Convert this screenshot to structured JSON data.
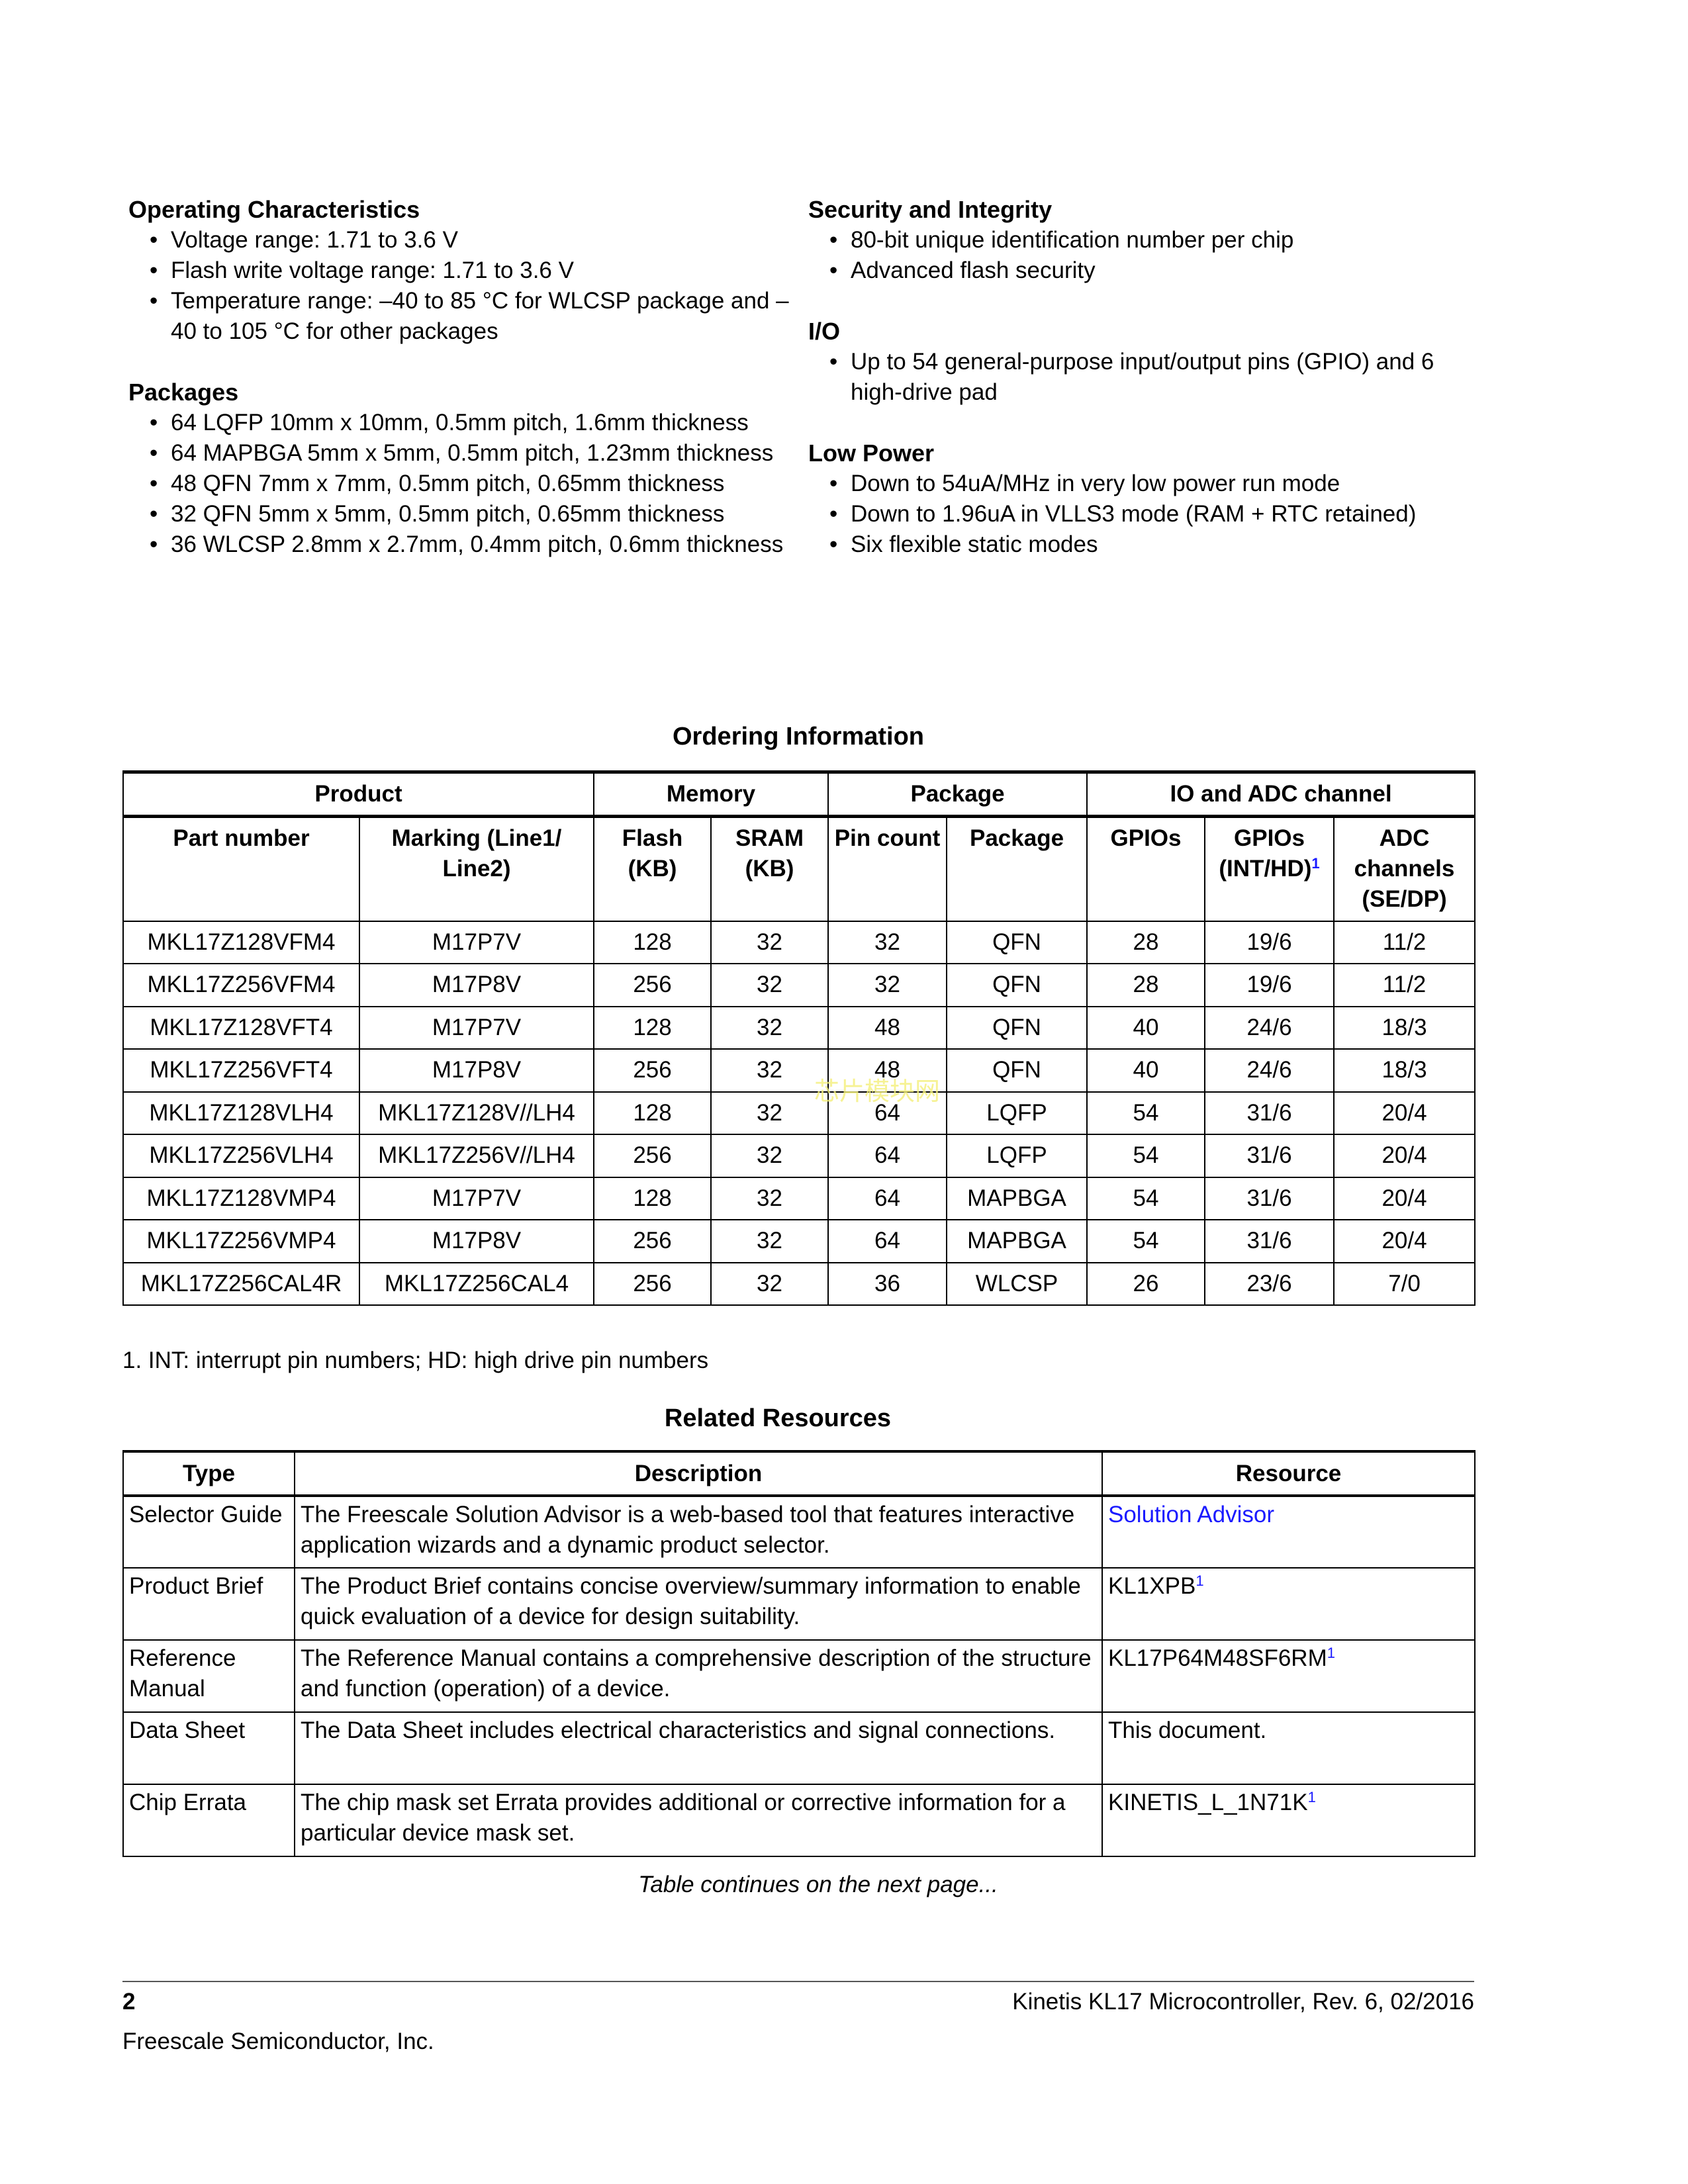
{
  "left": [
    {
      "heading": "Operating Characteristics",
      "items": [
        "Voltage range: 1.71 to 3.6 V",
        "Flash write voltage range: 1.71 to 3.6 V",
        "Temperature range: –40 to 85 °C for WLCSP package and –40 to 105 °C for other packages"
      ]
    },
    {
      "heading": "Packages",
      "items": [
        "64 LQFP 10mm x 10mm, 0.5mm pitch, 1.6mm thickness",
        "64 MAPBGA 5mm x 5mm, 0.5mm pitch, 1.23mm thickness",
        "48 QFN 7mm x 7mm, 0.5mm pitch, 0.65mm thickness",
        "32 QFN 5mm x 5mm, 0.5mm pitch, 0.65mm thickness",
        "36 WLCSP 2.8mm x 2.7mm, 0.4mm pitch, 0.6mm thickness"
      ]
    }
  ],
  "right": [
    {
      "heading": "Security and Integrity",
      "items": [
        "80-bit unique identification number per chip",
        "Advanced flash security"
      ]
    },
    {
      "heading": "I/O",
      "items": [
        "Up to 54 general-purpose input/output pins (GPIO) and 6 high-drive pad"
      ]
    },
    {
      "heading": "Low Power",
      "items": [
        "Down to 54uA/MHz in very low power run mode",
        "Down to 1.96uA in VLLS3 mode (RAM + RTC retained)",
        "Six flexible static modes"
      ]
    }
  ],
  "ordering": {
    "title": "Ordering Information",
    "groups": [
      "Product",
      "Memory",
      "Package",
      "IO and ADC channel"
    ],
    "headers": [
      "Part number",
      "Marking (Line1/ Line2)",
      "Flash (KB)",
      "SRAM (KB)",
      "Pin count",
      "Package",
      "GPIOs",
      "GPIOs (INT/HD)",
      "ADC channels (SE/DP)"
    ],
    "header_footnote": "1",
    "rows": [
      [
        "MKL17Z128VFM4",
        "M17P7V",
        "128",
        "32",
        "32",
        "QFN",
        "28",
        "19/6",
        "11/2"
      ],
      [
        "MKL17Z256VFM4",
        "M17P8V",
        "256",
        "32",
        "32",
        "QFN",
        "28",
        "19/6",
        "11/2"
      ],
      [
        "MKL17Z128VFT4",
        "M17P7V",
        "128",
        "32",
        "48",
        "QFN",
        "40",
        "24/6",
        "18/3"
      ],
      [
        "MKL17Z256VFT4",
        "M17P8V",
        "256",
        "32",
        "48",
        "QFN",
        "40",
        "24/6",
        "18/3"
      ],
      [
        "MKL17Z128VLH4",
        "MKL17Z128V//LH4",
        "128",
        "32",
        "64",
        "LQFP",
        "54",
        "31/6",
        "20/4"
      ],
      [
        "MKL17Z256VLH4",
        "MKL17Z256V//LH4",
        "256",
        "32",
        "64",
        "LQFP",
        "54",
        "31/6",
        "20/4"
      ],
      [
        "MKL17Z128VMP4",
        "M17P7V",
        "128",
        "32",
        "64",
        "MAPBGA",
        "54",
        "31/6",
        "20/4"
      ],
      [
        "MKL17Z256VMP4",
        "M17P8V",
        "256",
        "32",
        "64",
        "MAPBGA",
        "54",
        "31/6",
        "20/4"
      ],
      [
        "MKL17Z256CAL4R",
        "MKL17Z256CAL4",
        "256",
        "32",
        "36",
        "WLCSP",
        "26",
        "23/6",
        "7/0"
      ]
    ],
    "footnote": "1.   INT: interrupt pin numbers; HD: high drive pin numbers"
  },
  "watermark": "芯片模块网",
  "resources": {
    "title": "Related Resources",
    "headers": [
      "Type",
      "Description",
      "Resource"
    ],
    "rows": [
      {
        "type": "Selector Guide",
        "desc": "The Freescale Solution Advisor is a web-based tool that features interactive application wizards and a dynamic product selector.",
        "res": "Solution Advisor",
        "sup": ""
      },
      {
        "type": "Product Brief",
        "desc": "The Product Brief contains concise overview/summary information to enable quick evaluation of a device for design suitability.",
        "res": "KL1XPB",
        "sup": "1"
      },
      {
        "type": "Reference Manual",
        "desc": "The Reference Manual contains a comprehensive description of the structure and function (operation) of a device.",
        "res": "KL17P64M48SF6RM",
        "sup": "1"
      },
      {
        "type": "Data Sheet",
        "desc": "The Data Sheet includes electrical characteristics and signal connections.",
        "res": "This document.",
        "sup": ""
      },
      {
        "type": "Chip Errata",
        "desc": "The chip mask set Errata provides additional or corrective information for a particular device mask set.",
        "res": "KINETIS_L_1N71K",
        "sup": "1"
      }
    ],
    "continues": "Table continues on the next page..."
  },
  "footer": {
    "page": "2",
    "doc": "Kinetis KL17 Microcontroller, Rev. 6, 02/2016",
    "company": "Freescale Semiconductor, Inc."
  },
  "colors": {
    "link": "#1a1aff",
    "watermark": "#f4f07a"
  }
}
